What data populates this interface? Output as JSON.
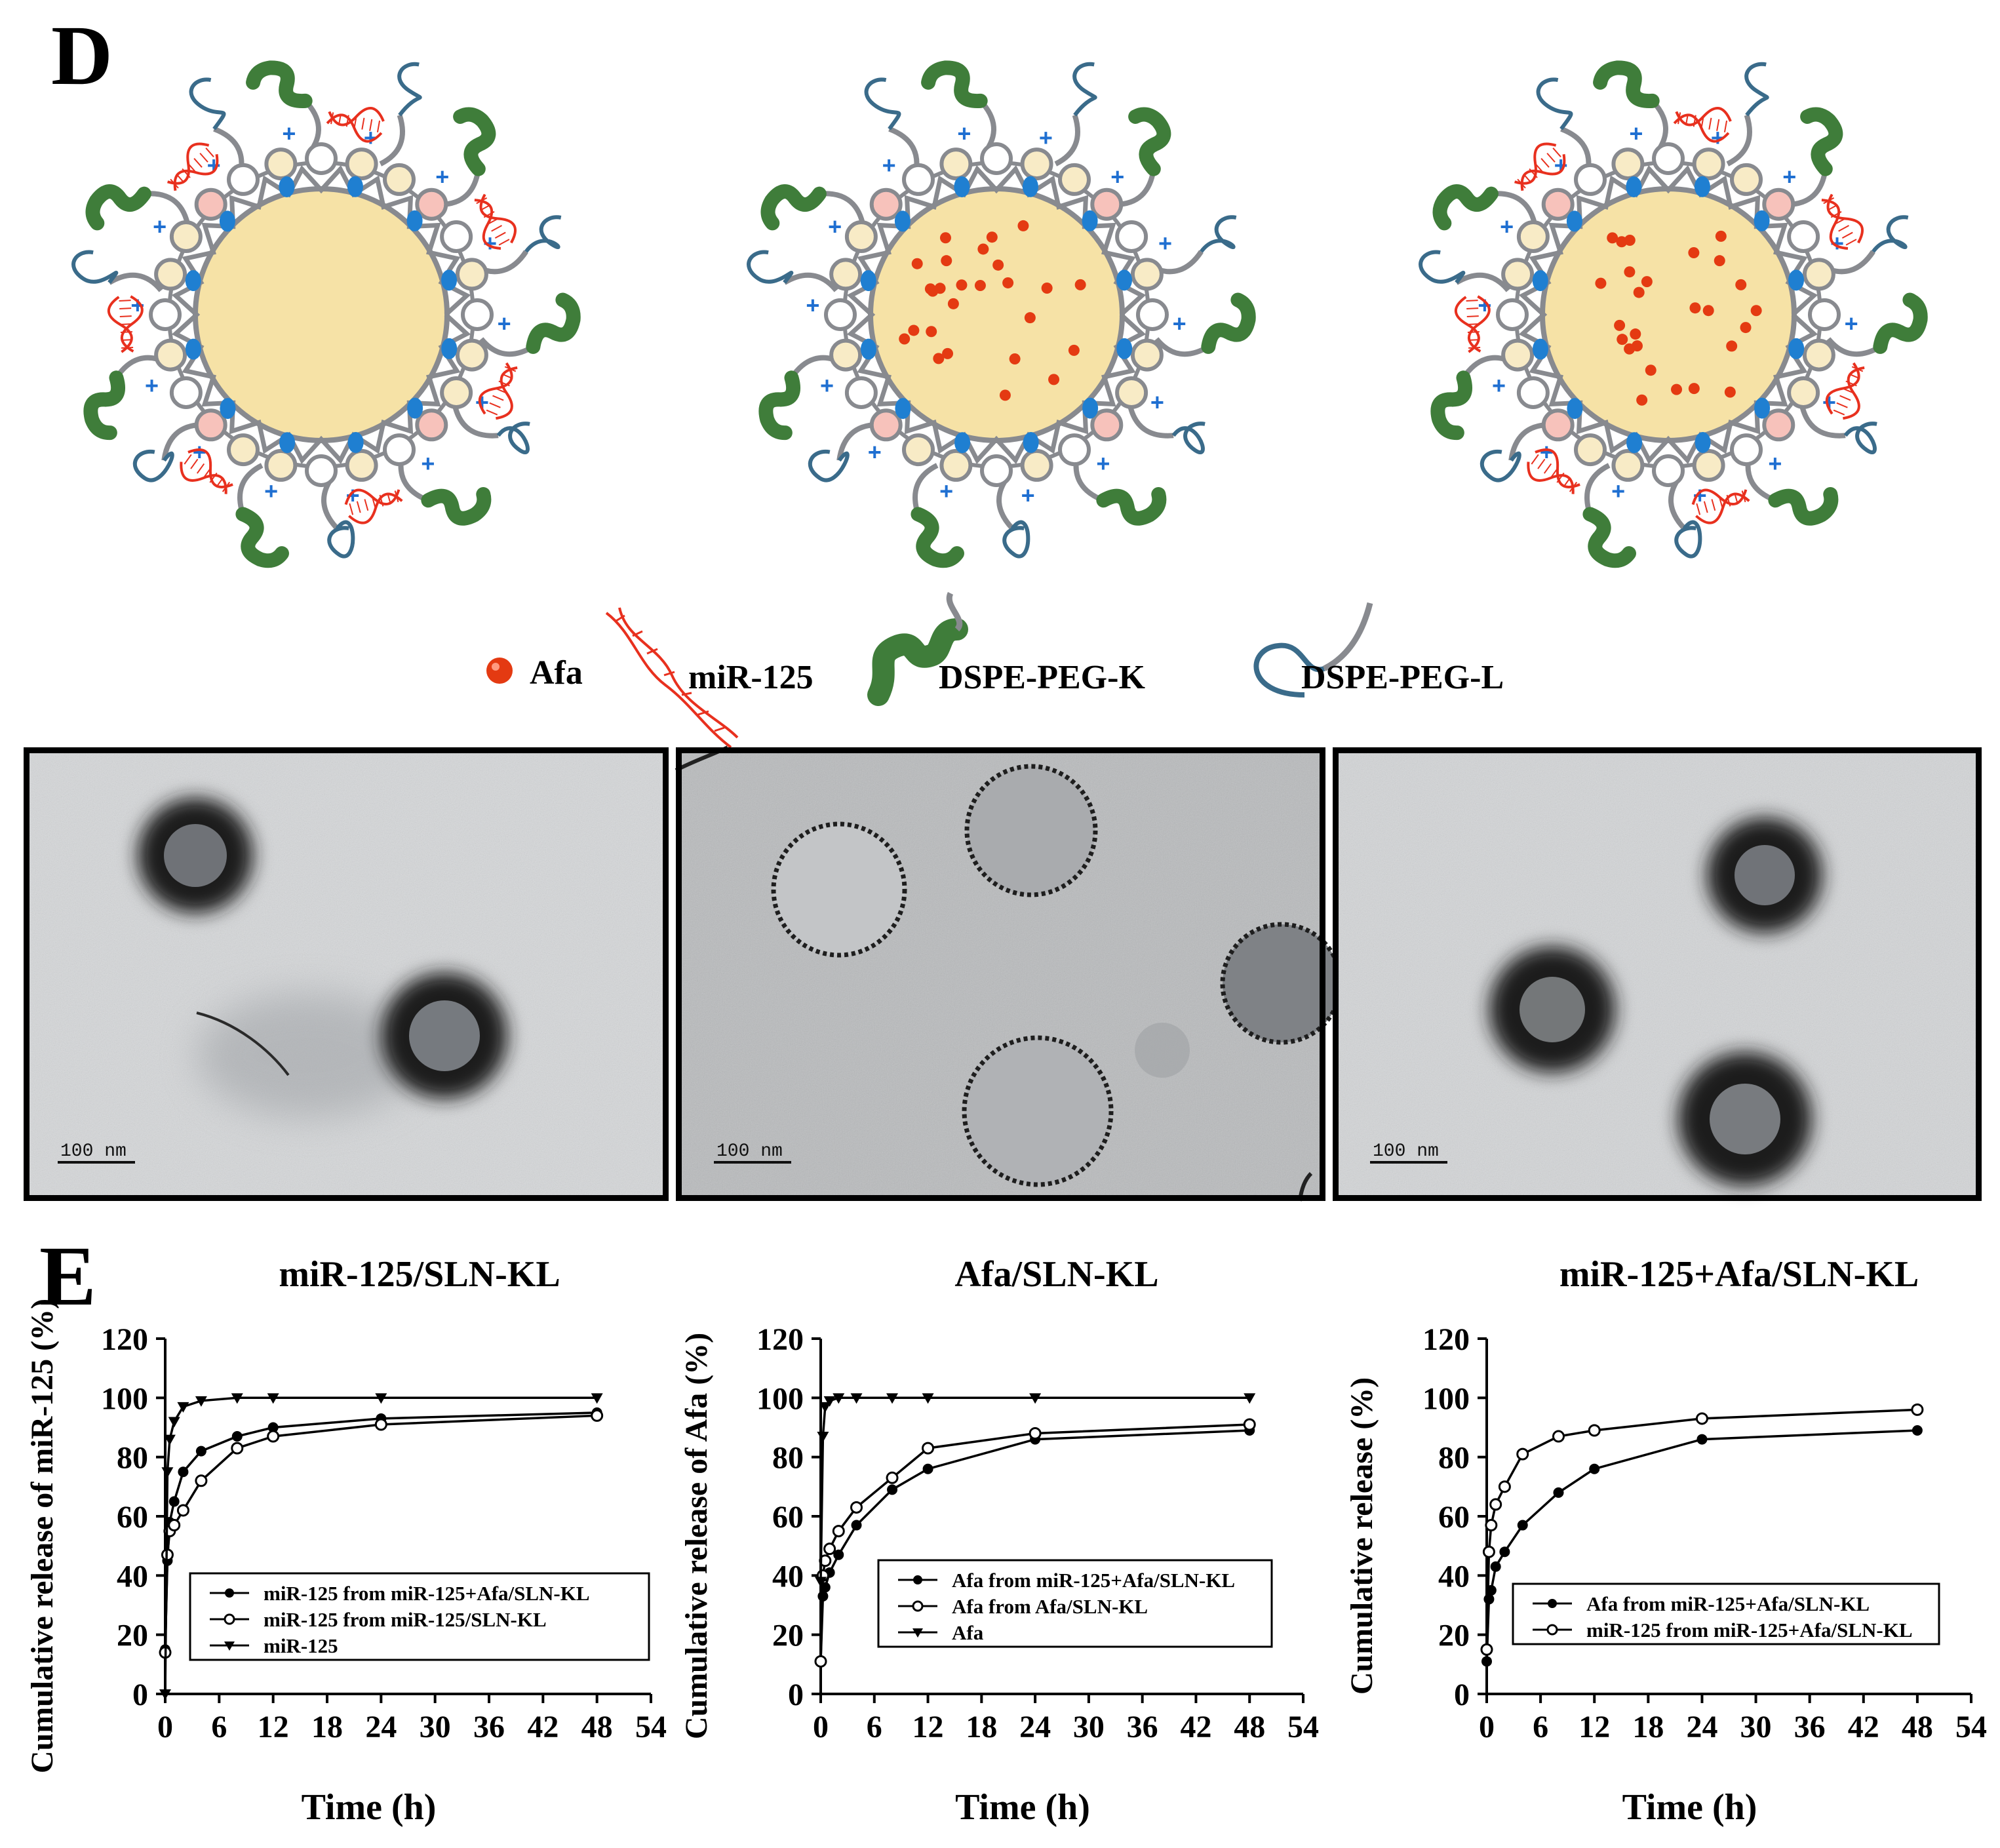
{
  "panel_d": {
    "letter": "D",
    "legend": [
      {
        "icon": "afa-dot-icon",
        "label": "Afa"
      },
      {
        "icon": "mirna-helix-icon",
        "label": "miR-125"
      },
      {
        "icon": "dspe-peg-k-icon",
        "label": "DSPE-PEG-K"
      },
      {
        "icon": "dspe-peg-l-icon",
        "label": "DSPE-PEG-L"
      }
    ],
    "particles": [
      {
        "name": "mir125-sln-kl",
        "has_mirna": true,
        "has_afa": false
      },
      {
        "name": "afa-sln-kl",
        "has_mirna": false,
        "has_afa": true
      },
      {
        "name": "mir125-afa-sln-kl",
        "has_mirna": true,
        "has_afa": true
      }
    ],
    "tem_scale_labels": [
      "100 nm",
      "100 nm",
      "100 nm"
    ]
  },
  "panel_e": {
    "letter": "E"
  },
  "colors": {
    "core": "#f6e2a6",
    "shell": "#888a8f",
    "lipid_white": "#ffffff",
    "lipid_cream": "#f8ebc6",
    "lipid_pink": "#f7c2bb",
    "blue_dot": "#1f7fd1",
    "plus": "#1f6fd1",
    "afa": "#e43a12",
    "mirna": "#e8301e",
    "peg_k": "#3f7d3a",
    "peg_l": "#3a6b8a"
  },
  "chart_data": [
    {
      "type": "line",
      "title": "miR-125/SLN-KL",
      "xlabel": "Time (h)",
      "ylabel": "Cumulative release of miR-125 (%)",
      "xlim": [
        0,
        54
      ],
      "ylim": [
        0,
        120
      ],
      "xticks": [
        0,
        6,
        12,
        18,
        24,
        30,
        36,
        42,
        48,
        54
      ],
      "yticks": [
        0,
        20,
        40,
        60,
        80,
        100,
        120
      ],
      "legend_position": "lower-center",
      "series": [
        {
          "name": "miR-125 from miR-125+Afa/SLN-KL",
          "marker": "filled-circle",
          "x": [
            0,
            0.25,
            0.5,
            1,
            2,
            4,
            8,
            12,
            24,
            48
          ],
          "y": [
            15,
            45,
            58,
            65,
            75,
            82,
            87,
            90,
            93,
            95
          ]
        },
        {
          "name": "miR-125 from miR-125/SLN-KL",
          "marker": "open-circle",
          "x": [
            0,
            0.25,
            0.5,
            1,
            2,
            4,
            8,
            12,
            24,
            48
          ],
          "y": [
            14,
            47,
            55,
            57,
            62,
            72,
            83,
            87,
            91,
            94
          ]
        },
        {
          "name": "miR-125",
          "marker": "filled-triangle-down",
          "x": [
            0,
            0.25,
            0.5,
            1,
            2,
            4,
            8,
            12,
            24,
            48
          ],
          "y": [
            0,
            75,
            86,
            92,
            97,
            99,
            100,
            100,
            100,
            100
          ]
        }
      ]
    },
    {
      "type": "line",
      "title": "Afa/SLN-KL",
      "xlabel": "Time (h)",
      "ylabel": "Cumulative release of Afa (%)",
      "xlim": [
        0,
        54
      ],
      "ylim": [
        0,
        120
      ],
      "xticks": [
        0,
        6,
        12,
        18,
        24,
        30,
        36,
        42,
        48,
        54
      ],
      "yticks": [
        0,
        20,
        40,
        60,
        80,
        100,
        120
      ],
      "legend_position": "lower-center",
      "series": [
        {
          "name": "Afa from miR-125+Afa/SLN-KL",
          "marker": "filled-circle",
          "x": [
            0,
            0.25,
            0.5,
            1,
            2,
            4,
            8,
            12,
            24,
            48
          ],
          "y": [
            11,
            33,
            36,
            41,
            47,
            57,
            69,
            76,
            86,
            89
          ]
        },
        {
          "name": "Afa from Afa/SLN-KL",
          "marker": "open-circle",
          "x": [
            0,
            0.25,
            0.5,
            1,
            2,
            4,
            8,
            12,
            24,
            48
          ],
          "y": [
            11,
            40,
            45,
            49,
            55,
            63,
            73,
            83,
            88,
            91
          ]
        },
        {
          "name": "Afa",
          "marker": "filled-triangle-down",
          "x": [
            0,
            0.25,
            0.5,
            1,
            2,
            4,
            8,
            12,
            24,
            48
          ],
          "y": [
            38,
            87,
            97,
            99,
            100,
            100,
            100,
            100,
            100,
            100
          ]
        }
      ]
    },
    {
      "type": "line",
      "title": "miR-125+Afa/SLN-KL",
      "xlabel": "Time (h)",
      "ylabel": "Cumulative release (%)",
      "xlim": [
        0,
        54
      ],
      "ylim": [
        0,
        120
      ],
      "xticks": [
        0,
        6,
        12,
        18,
        24,
        30,
        36,
        42,
        48,
        54
      ],
      "yticks": [
        0,
        20,
        40,
        60,
        80,
        100,
        120
      ],
      "legend_position": "lower-center",
      "series": [
        {
          "name": "Afa from miR-125+Afa/SLN-KL",
          "marker": "filled-circle",
          "x": [
            0,
            0.25,
            0.5,
            1,
            2,
            4,
            8,
            12,
            24,
            48
          ],
          "y": [
            11,
            32,
            35,
            43,
            48,
            57,
            68,
            76,
            86,
            89
          ]
        },
        {
          "name": "miR-125 from miR-125+Afa/SLN-KL",
          "marker": "open-circle",
          "x": [
            0,
            0.25,
            0.5,
            1,
            2,
            4,
            8,
            12,
            24,
            48
          ],
          "y": [
            15,
            48,
            57,
            64,
            70,
            81,
            87,
            89,
            93,
            96
          ]
        }
      ]
    }
  ]
}
